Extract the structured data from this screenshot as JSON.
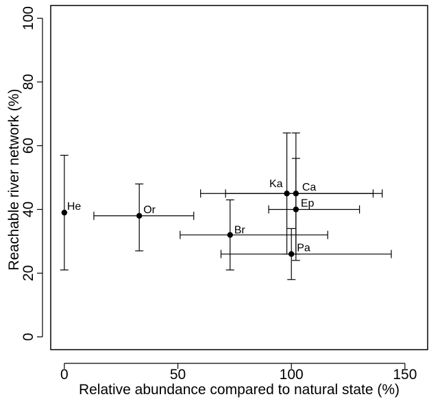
{
  "chart_data": {
    "type": "scatter",
    "xlabel": "Relative abundance compared to natural state (%)",
    "ylabel": "Reachable river network (%)",
    "xlim": [
      -6,
      160
    ],
    "ylim": [
      -4,
      104
    ],
    "xticks": [
      0,
      50,
      100,
      150
    ],
    "yticks": [
      0,
      20,
      40,
      60,
      80,
      100
    ],
    "grid": false,
    "error_bars": "horizontal and vertical",
    "points": [
      {
        "label": "He",
        "x": 0,
        "y": 39,
        "x_low": 0,
        "x_high": 0,
        "y_low": 21,
        "y_high": 57
      },
      {
        "label": "Or",
        "x": 33,
        "y": 38,
        "x_low": 13,
        "x_high": 57,
        "y_low": 27,
        "y_high": 48
      },
      {
        "label": "Br",
        "x": 73,
        "y": 32,
        "x_low": 51,
        "x_high": 116,
        "y_low": 21,
        "y_high": 43
      },
      {
        "label": "Ka",
        "x": 98,
        "y": 45,
        "x_low": 60,
        "x_high": 136,
        "y_low": 26,
        "y_high": 64
      },
      {
        "label": "Ca",
        "x": 102,
        "y": 45,
        "x_low": 71,
        "x_high": 140,
        "y_low": 26,
        "y_high": 64
      },
      {
        "label": "Ep",
        "x": 102,
        "y": 40,
        "x_low": 90,
        "x_high": 130,
        "y_low": 24,
        "y_high": 56
      },
      {
        "label": "Pa",
        "x": 100,
        "y": 26,
        "x_low": 69,
        "x_high": 144,
        "y_low": 18,
        "y_high": 34
      }
    ]
  }
}
